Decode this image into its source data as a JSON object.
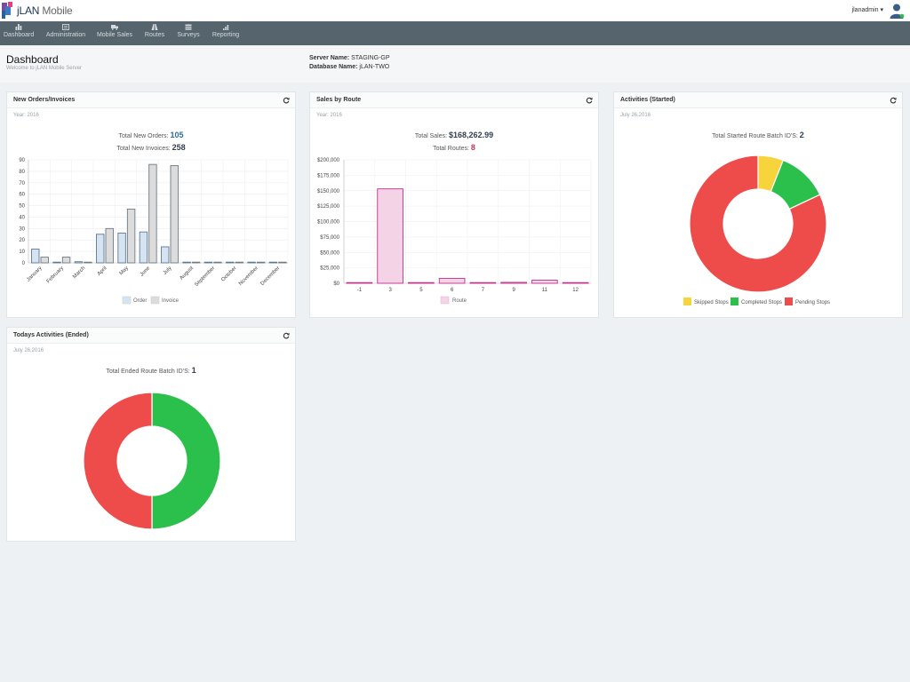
{
  "app": {
    "name_primary": "jLAN",
    "name_secondary": "Mobile",
    "user": "jlanadmin"
  },
  "colors": {
    "nav_bg": "#56646d",
    "order_fill": "#d6e4f2",
    "invoice_fill": "#dcdcdc",
    "route_fill": "#f4d3e7",
    "route_stroke": "#c0328c",
    "skipped": "#f7d43b",
    "completed": "#2bbf4c",
    "pending": "#ee4b4b"
  },
  "nav": [
    {
      "label": "Dashboard",
      "icon": "bar-chart-icon"
    },
    {
      "label": "Administration",
      "icon": "list-icon"
    },
    {
      "label": "Mobile Sales",
      "icon": "truck-icon"
    },
    {
      "label": "Routes",
      "icon": "road-icon"
    },
    {
      "label": "Surveys",
      "icon": "checklist-icon"
    },
    {
      "label": "Reporting",
      "icon": "signal-icon"
    }
  ],
  "header": {
    "title": "Dashboard",
    "subtitle": "Welcome to jLAN Mobile Server",
    "server_label": "Server Name:",
    "server_value": "STAGING-GP",
    "database_label": "Database Name:",
    "database_value": "jLAN-TWO"
  },
  "panels": {
    "orders": {
      "title": "New Orders/Invoices",
      "meta": "Year: 2016",
      "stat1_label": "Total New Orders:",
      "stat1_value": "105",
      "stat2_label": "Total New Invoices:",
      "stat2_value": "258"
    },
    "sales": {
      "title": "Sales by Route",
      "meta": "Year: 2016",
      "stat1_label": "Total Sales:",
      "stat1_value": "$168,262.99",
      "stat2_label": "Total Routes:",
      "stat2_value": "8"
    },
    "activities": {
      "title": "Activities (Started)",
      "meta": "July 26,2016",
      "stat1_label": "Total Started Route Batch ID'S:",
      "stat1_value": "2"
    },
    "today": {
      "title": "Todays Activities (Ended)",
      "meta": "July 26,2016",
      "stat1_label": "Total Ended Route Batch ID'S:",
      "stat1_value": "1"
    }
  },
  "chart_data": [
    {
      "type": "bar",
      "categories": [
        "January",
        "February",
        "March",
        "April",
        "May",
        "June",
        "July",
        "August",
        "September",
        "October",
        "November",
        "December"
      ],
      "series": [
        {
          "name": "Order",
          "values": [
            12,
            0,
            1,
            25,
            26,
            27,
            14,
            0,
            0,
            0,
            0,
            0
          ]
        },
        {
          "name": "Invoice",
          "values": [
            5,
            5,
            0,
            30,
            47,
            86,
            85,
            0,
            0,
            0,
            0,
            0
          ]
        }
      ],
      "ylim": [
        0,
        90
      ],
      "yticks": [
        "0",
        "10",
        "20",
        "30",
        "40",
        "50",
        "60",
        "70",
        "80",
        "90"
      ],
      "grid": true,
      "legend": "bottom"
    },
    {
      "type": "bar",
      "categories": [
        "-1",
        "3",
        "5",
        "6",
        "7",
        "9",
        "11",
        "12"
      ],
      "series": [
        {
          "name": "Route",
          "values": [
            500,
            153000,
            500,
            8000,
            1000,
            1500,
            5000,
            500
          ]
        }
      ],
      "ylim": [
        0,
        200000
      ],
      "yticks": [
        "$0",
        "$25,000",
        "$50,000",
        "$75,000",
        "$100,000",
        "$125,000",
        "$150,000",
        "$175,000",
        "$200,000"
      ],
      "grid": true,
      "legend": "bottom"
    },
    {
      "type": "pie",
      "labels": [
        "Skipped Stops",
        "Completed Stops",
        "Pending Stops"
      ],
      "values": [
        6,
        12,
        82
      ],
      "legend": "bottom"
    },
    {
      "type": "pie",
      "labels": [
        "Completed Stops",
        "Pending Stops"
      ],
      "values": [
        50,
        50
      ]
    }
  ]
}
